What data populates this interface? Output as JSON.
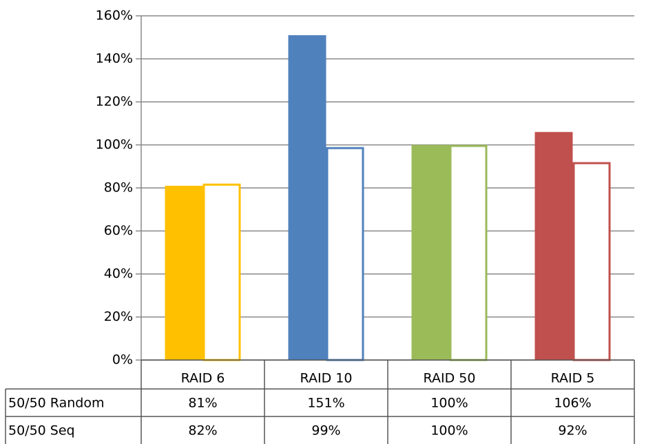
{
  "chart_data": {
    "type": "bar",
    "categories": [
      "RAID 6",
      "RAID 10",
      "RAID 50",
      "RAID 5"
    ],
    "category_colors": [
      "#ffc000",
      "#4f81bd",
      "#9bbb59",
      "#c0504d"
    ],
    "series": [
      {
        "name": "50/50 Random",
        "fill": true,
        "values": [
          81,
          151,
          100,
          106
        ],
        "value_labels": [
          "81%",
          "151%",
          "100%",
          "106%"
        ]
      },
      {
        "name": "50/50 Seq",
        "fill": false,
        "values": [
          82,
          99,
          100,
          92
        ],
        "value_labels": [
          "82%",
          "99%",
          "100%",
          "92%"
        ]
      }
    ],
    "ylim": [
      0,
      160
    ],
    "yticks": [
      {
        "value": 0,
        "label": "0%"
      },
      {
        "value": 20,
        "label": "20%"
      },
      {
        "value": 40,
        "label": "40%"
      },
      {
        "value": 60,
        "label": "60%"
      },
      {
        "value": 80,
        "label": "80%"
      },
      {
        "value": 100,
        "label": "100%"
      },
      {
        "value": 120,
        "label": "120%"
      },
      {
        "value": 140,
        "label": "140%"
      },
      {
        "value": 160,
        "label": "160%"
      }
    ],
    "grid": true,
    "data_table": true
  }
}
